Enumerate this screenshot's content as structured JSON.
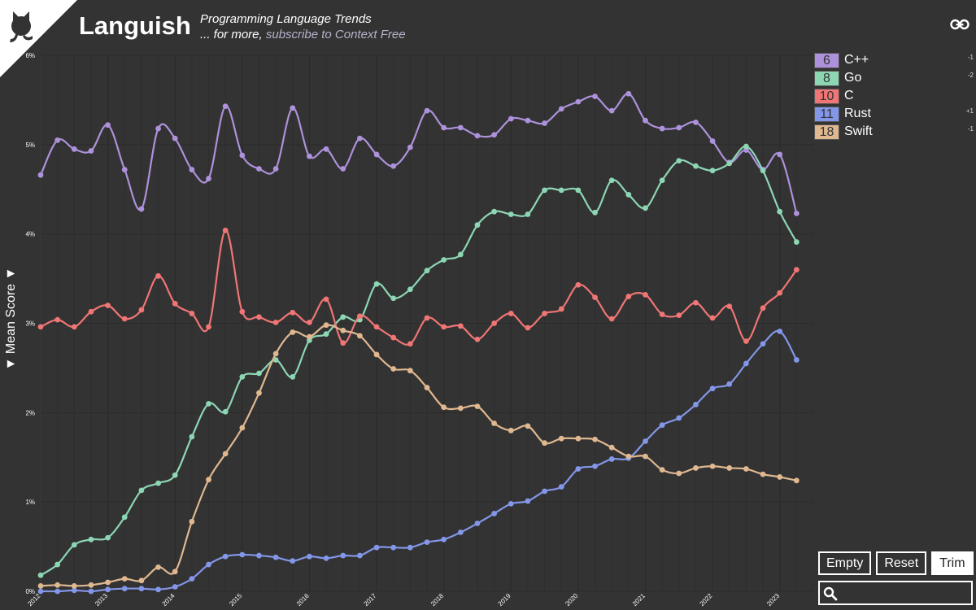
{
  "header": {
    "title": "Languish",
    "subtitle": "Programming Language Trends",
    "more_prefix": "... for more,",
    "more_link": "subscribe to Context Free"
  },
  "controls": {
    "empty": "Empty",
    "reset": "Reset",
    "trim": "Trim"
  },
  "search": {
    "placeholder": ""
  },
  "colors": {
    "background": "#333333",
    "cpp": "#ad92db",
    "go": "#8cd6b4",
    "c": "#f07575",
    "rust": "#8396e8",
    "swift": "#e0b890"
  },
  "legend": [
    {
      "rank": "6",
      "name": "C++",
      "delta": "-1",
      "color": "#ad92db"
    },
    {
      "rank": "8",
      "name": "Go",
      "delta": "-2",
      "color": "#8cd6b4"
    },
    {
      "rank": "10",
      "name": "C",
      "delta": "",
      "color": "#f07575"
    },
    {
      "rank": "11",
      "name": "Rust",
      "delta": "+1",
      "color": "#8396e8"
    },
    {
      "rank": "18",
      "name": "Swift",
      "delta": "-1",
      "color": "#e0b890"
    }
  ],
  "chart_data": {
    "type": "line",
    "ylabel": "▼ Mean Score ▼",
    "ylim": [
      0,
      6
    ],
    "yticks": [
      "0%",
      "1%",
      "2%",
      "3%",
      "4%",
      "5%",
      "6%"
    ],
    "xlim": [
      2012,
      2023.5
    ],
    "xticks": [
      "2012",
      "2013",
      "2014",
      "2015",
      "2016",
      "2017",
      "2018",
      "2019",
      "2020",
      "2021",
      "2022",
      "2023"
    ],
    "x_start": 2012,
    "x_step": 0.25,
    "series": [
      {
        "name": "C++",
        "color": "#ad92db",
        "values": [
          4.66,
          5.05,
          4.95,
          4.93,
          5.22,
          4.72,
          4.28,
          5.18,
          5.07,
          4.72,
          4.62,
          5.43,
          4.88,
          4.73,
          4.73,
          5.41,
          4.87,
          4.95,
          4.73,
          5.07,
          4.89,
          4.76,
          4.97,
          5.38,
          5.19,
          5.19,
          5.1,
          5.11,
          5.29,
          5.27,
          5.24,
          5.4,
          5.48,
          5.54,
          5.38,
          5.57,
          5.27,
          5.18,
          5.19,
          5.25,
          5.04,
          4.8,
          4.94,
          4.72,
          4.89,
          4.23
        ]
      },
      {
        "name": "Go",
        "color": "#8cd6b4",
        "values": [
          0.18,
          0.3,
          0.52,
          0.58,
          0.6,
          0.83,
          1.13,
          1.21,
          1.3,
          1.73,
          2.1,
          2.01,
          2.4,
          2.44,
          2.59,
          2.4,
          2.81,
          2.88,
          3.07,
          3.04,
          3.44,
          3.28,
          3.38,
          3.59,
          3.71,
          3.77,
          4.1,
          4.25,
          4.22,
          4.22,
          4.49,
          4.49,
          4.49,
          4.24,
          4.6,
          4.44,
          4.29,
          4.6,
          4.82,
          4.76,
          4.71,
          4.79,
          4.98,
          4.71,
          4.25,
          3.91
        ]
      },
      {
        "name": "C",
        "color": "#f07575",
        "values": [
          2.96,
          3.04,
          2.96,
          3.13,
          3.2,
          3.05,
          3.15,
          3.53,
          3.22,
          3.11,
          2.96,
          4.04,
          3.13,
          3.07,
          3.01,
          3.12,
          3.01,
          3.27,
          2.78,
          3.08,
          2.96,
          2.84,
          2.77,
          3.06,
          2.96,
          2.97,
          2.82,
          3.0,
          3.11,
          2.95,
          3.11,
          3.16,
          3.43,
          3.29,
          3.05,
          3.3,
          3.32,
          3.1,
          3.09,
          3.23,
          3.06,
          3.19,
          2.8,
          3.17,
          3.34,
          3.6
        ]
      },
      {
        "name": "Rust",
        "color": "#8396e8",
        "values": [
          0.0,
          0.0,
          0.01,
          0.0,
          0.02,
          0.03,
          0.03,
          0.02,
          0.05,
          0.14,
          0.3,
          0.39,
          0.41,
          0.4,
          0.38,
          0.34,
          0.39,
          0.37,
          0.4,
          0.4,
          0.49,
          0.49,
          0.49,
          0.55,
          0.58,
          0.66,
          0.76,
          0.87,
          0.98,
          1.01,
          1.12,
          1.17,
          1.37,
          1.4,
          1.48,
          1.49,
          1.68,
          1.86,
          1.94,
          2.09,
          2.27,
          2.32,
          2.55,
          2.77,
          2.91,
          2.59
        ]
      },
      {
        "name": "Swift",
        "color": "#e0b890",
        "values": [
          0.06,
          0.07,
          0.06,
          0.07,
          0.1,
          0.14,
          0.12,
          0.27,
          0.22,
          0.78,
          1.25,
          1.54,
          1.83,
          2.22,
          2.66,
          2.9,
          2.85,
          2.98,
          2.92,
          2.86,
          2.65,
          2.49,
          2.47,
          2.28,
          2.06,
          2.05,
          2.07,
          1.88,
          1.8,
          1.85,
          1.66,
          1.71,
          1.71,
          1.7,
          1.61,
          1.51,
          1.51,
          1.36,
          1.32,
          1.38,
          1.4,
          1.38,
          1.37,
          1.31,
          1.28,
          1.24
        ]
      }
    ]
  }
}
